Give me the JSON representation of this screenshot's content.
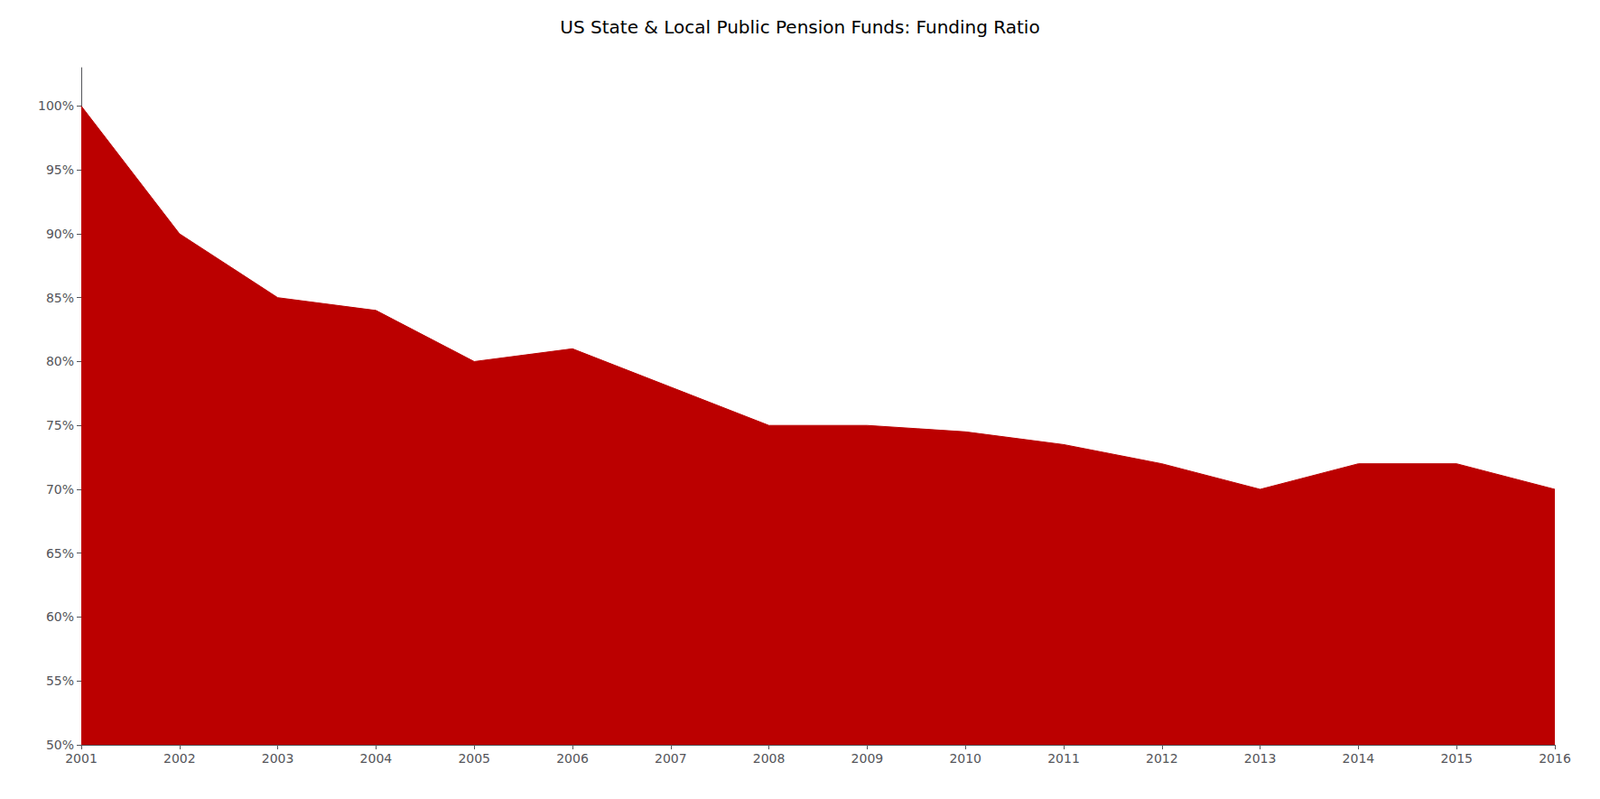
{
  "chart_data": {
    "type": "area",
    "title": "US State & Local Public Pension Funds: Funding Ratio",
    "x": [
      2001,
      2002,
      2003,
      2004,
      2005,
      2006,
      2007,
      2008,
      2009,
      2010,
      2011,
      2012,
      2013,
      2014,
      2015,
      2016
    ],
    "values": [
      100,
      90,
      85,
      84,
      80,
      81,
      78,
      75,
      75,
      74.5,
      73.5,
      72,
      70,
      72,
      72,
      70
    ],
    "color": "#BB0000",
    "xlim": [
      2001,
      2016
    ],
    "xticks": [
      2001,
      2002,
      2003,
      2004,
      2005,
      2006,
      2007,
      2008,
      2009,
      2010,
      2011,
      2012,
      2013,
      2014,
      2015,
      2016
    ],
    "ylim": [
      50,
      103
    ],
    "yticks": [
      {
        "value": 50,
        "label": "50%"
      },
      {
        "value": 55,
        "label": "55%"
      },
      {
        "value": 60,
        "label": "60%"
      },
      {
        "value": 65,
        "label": "65%"
      },
      {
        "value": 70,
        "label": "70%"
      },
      {
        "value": 75,
        "label": "75%"
      },
      {
        "value": 80,
        "label": "80%"
      },
      {
        "value": 85,
        "label": "85%"
      },
      {
        "value": 90,
        "label": "90%"
      },
      {
        "value": 95,
        "label": "95%"
      },
      {
        "value": 100,
        "label": "100%"
      }
    ],
    "grid": false
  }
}
